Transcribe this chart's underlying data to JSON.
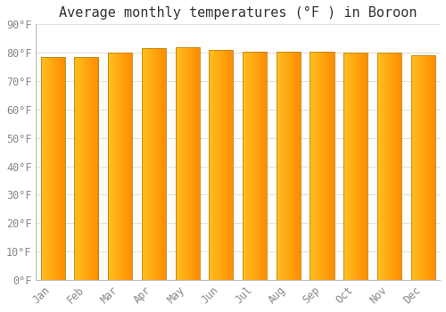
{
  "title": "Average monthly temperatures (°F ) in Boroon",
  "months": [
    "Jan",
    "Feb",
    "Mar",
    "Apr",
    "May",
    "Jun",
    "Jul",
    "Aug",
    "Sep",
    "Oct",
    "Nov",
    "Dec"
  ],
  "values": [
    78.5,
    78.5,
    80.0,
    81.5,
    82.0,
    81.0,
    80.5,
    80.5,
    80.5,
    80.0,
    80.0,
    79.0
  ],
  "ylim": [
    0,
    90
  ],
  "yticks": [
    0,
    10,
    20,
    30,
    40,
    50,
    60,
    70,
    80,
    90
  ],
  "ytick_labels": [
    "0°F",
    "10°F",
    "20°F",
    "30°F",
    "40°F",
    "50°F",
    "60°F",
    "70°F",
    "80°F",
    "90°F"
  ],
  "bar_color_left": "#FFC020",
  "bar_color_right": "#FF8C00",
  "bar_edge_color": "#B8860B",
  "background_color": "#FFFFFF",
  "grid_color": "#E0E0E0",
  "title_fontsize": 11,
  "tick_fontsize": 8.5,
  "font_family": "monospace",
  "tick_color": "#888888",
  "title_color": "#333333"
}
